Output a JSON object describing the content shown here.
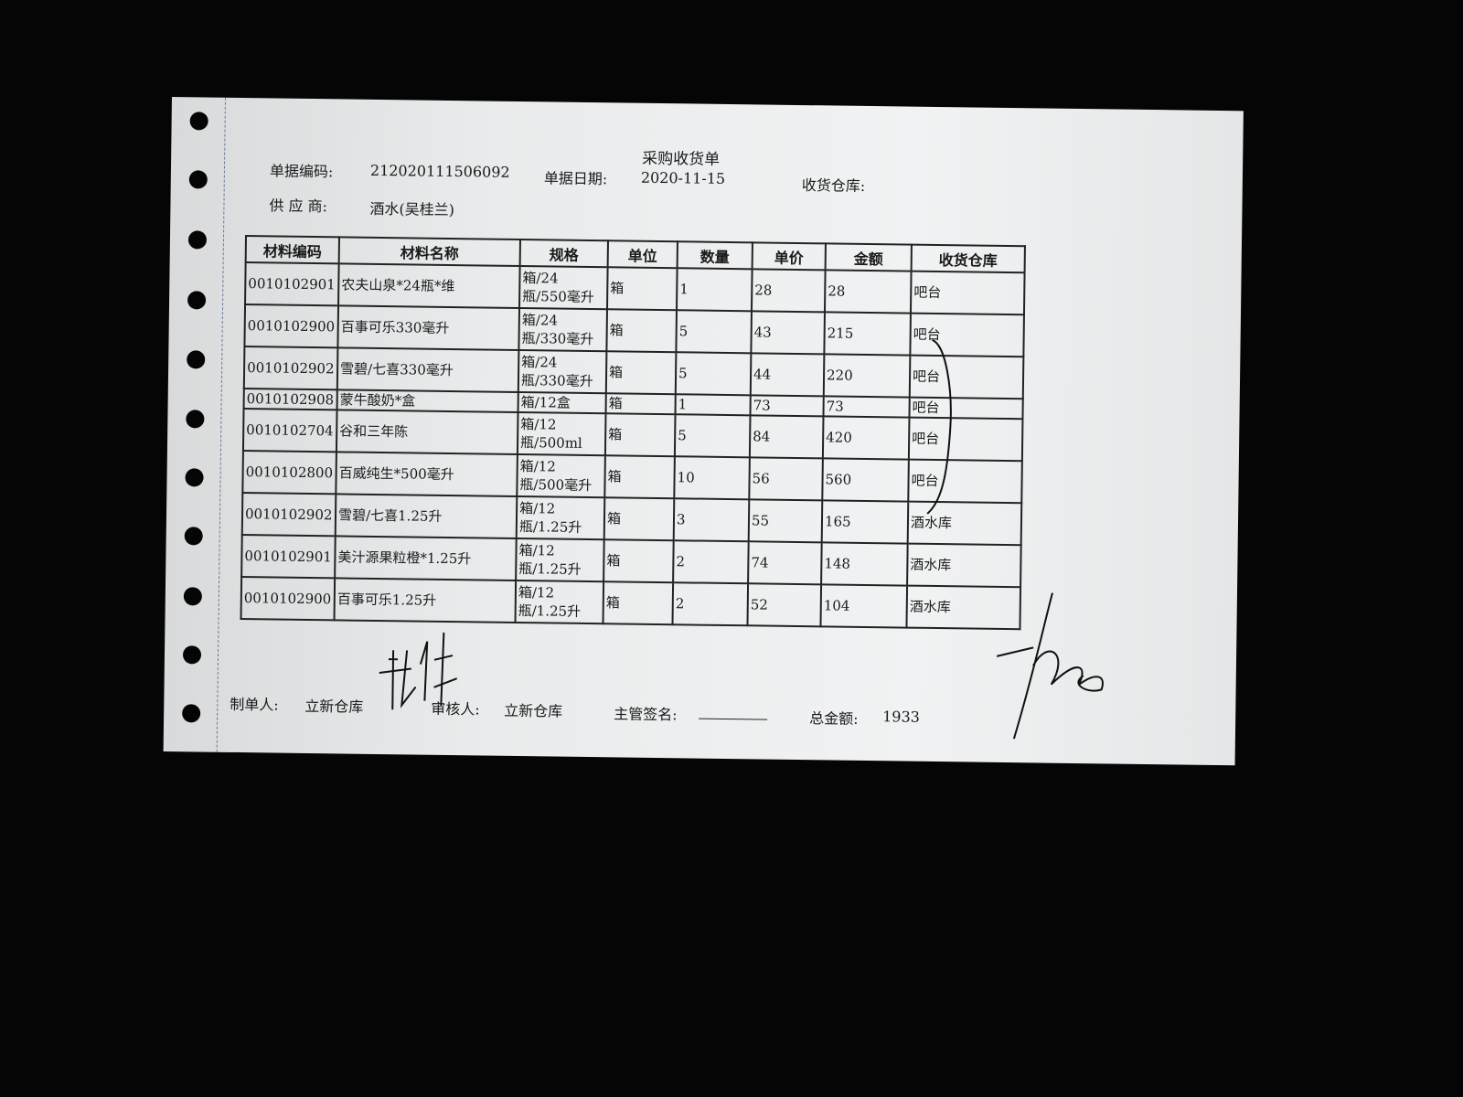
{
  "document": {
    "title": "采购收货单",
    "doc_no_label": "单据编码:",
    "doc_no": "212020111506092",
    "date_label": "单据日期:",
    "date": "2020-11-15",
    "warehouse_label": "收货仓库:",
    "supplier_label": "供 应 商:",
    "supplier": "酒水(吴桂兰)"
  },
  "table": {
    "headers": [
      "材料编码",
      "材料名称",
      "规格",
      "单位",
      "数量",
      "单价",
      "金额",
      "收货仓库"
    ],
    "rows": [
      [
        "0010102901",
        "农夫山泉*24瓶*维",
        "箱/24 瓶/550毫升",
        "箱",
        "1",
        "28",
        "28",
        "吧台"
      ],
      [
        "0010102900",
        "百事可乐330毫升",
        "箱/24 瓶/330毫升",
        "箱",
        "5",
        "43",
        "215",
        "吧台"
      ],
      [
        "0010102902",
        "雪碧/七喜330毫升",
        "箱/24 瓶/330毫升",
        "箱",
        "5",
        "44",
        "220",
        "吧台"
      ],
      [
        "0010102908",
        "蒙牛酸奶*盒",
        "箱/12盒",
        "箱",
        "1",
        "73",
        "73",
        "吧台"
      ],
      [
        "0010102704",
        "谷和三年陈",
        "箱/12 瓶/500ml",
        "箱",
        "5",
        "84",
        "420",
        "吧台"
      ],
      [
        "0010102800",
        "百威纯生*500毫升",
        "箱/12 瓶/500毫升",
        "箱",
        "10",
        "56",
        "560",
        "吧台"
      ],
      [
        "0010102902",
        "雪碧/七喜1.25升",
        "箱/12 瓶/1.25升",
        "箱",
        "3",
        "55",
        "165",
        "酒水库"
      ],
      [
        "0010102901",
        "美汁源果粒橙*1.25升",
        "箱/12 瓶/1.25升",
        "箱",
        "2",
        "74",
        "148",
        "酒水库"
      ],
      [
        "0010102900",
        "百事可乐1.25升",
        "箱/12 瓶/1.25升",
        "箱",
        "2",
        "52",
        "104",
        "酒水库"
      ]
    ]
  },
  "footer": {
    "maker_label": "制单人:",
    "maker": "立新仓库",
    "reviewer_label": "审核人:",
    "reviewer": "立新仓库",
    "supervisor_label": "主管签名:",
    "total_label": "总金额:",
    "total": "1933"
  }
}
